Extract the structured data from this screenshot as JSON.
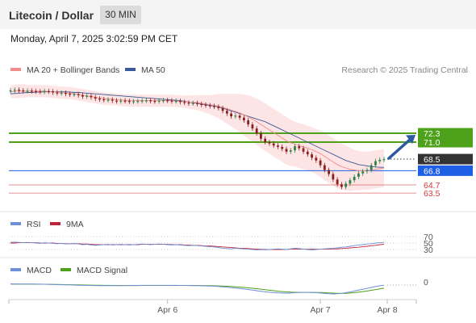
{
  "header": {
    "title": "Litecoin / Dollar",
    "interval": "30 MIN"
  },
  "timestamp": "Monday, April 7, 2025 3:02:59 PM CET",
  "legend": {
    "ma20": "MA 20 + Bollinger Bands",
    "ma50": "MA 50",
    "rsi": "RSI",
    "rsi9": "9MA",
    "macd": "MACD",
    "macd_signal": "MACD Signal"
  },
  "credit": "Research © 2025 Trading Central",
  "colors": {
    "ma20": "#f08c8c",
    "ma50": "#3b5998",
    "bands_fill": "#fde0e0",
    "green_level": "#4ea11a",
    "blue_level": "#1f5fe6",
    "red_level": "#e06060",
    "up_candle": "#2d7f4a",
    "down_candle": "#8b1f1f",
    "arrow": "#2d5aa0",
    "macd": "#6f8fd8",
    "macd_signal": "#4ea11a",
    "rsi": "#6f8fd8",
    "rsi9": "#c0243a"
  },
  "chart_data": {
    "type": "candlestick",
    "price_range": [
      61.5,
      80.5
    ],
    "levels": [
      {
        "value": 72.3,
        "label": "72.3",
        "kind": "resistance"
      },
      {
        "value": 71.0,
        "label": "71.0",
        "kind": "resistance"
      },
      {
        "value": 68.5,
        "label": "68.5",
        "kind": "last_price"
      },
      {
        "value": 66.8,
        "label": "66.8",
        "kind": "pivot"
      },
      {
        "value": 64.7,
        "label": "64.7",
        "kind": "support"
      },
      {
        "value": 63.5,
        "label": "63.5",
        "kind": "support"
      }
    ],
    "x_ticks": [
      "Apr 6",
      "Apr 7",
      "Apr 8"
    ],
    "close": [
      78.6,
      78.7,
      78.6,
      78.5,
      78.55,
      78.5,
      78.45,
      78.4,
      78.5,
      78.45,
      78.3,
      78.2,
      78.25,
      78.1,
      78.0,
      78.05,
      77.9,
      77.7,
      77.8,
      77.6,
      77.4,
      77.3,
      77.2,
      77.25,
      77.1,
      77.0,
      77.1,
      77.05,
      76.95,
      77.0,
      77.05,
      77.1,
      77.15,
      77.05,
      77.0,
      77.1,
      77.15,
      77.1,
      77.0,
      77.05,
      76.9,
      76.8,
      76.7,
      76.75,
      76.6,
      76.5,
      76.4,
      76.3,
      76.2,
      76.0,
      75.6,
      75.2,
      74.8,
      74.9,
      74.6,
      74.2,
      73.6,
      73.0,
      72.3,
      71.5,
      71.0,
      70.8,
      70.5,
      70.3,
      70.0,
      69.6,
      69.8,
      70.4,
      70.1,
      69.6,
      69.2,
      68.7,
      68.3,
      67.6,
      66.9,
      66.3,
      65.5,
      64.8,
      64.4,
      64.9,
      65.4,
      65.9,
      66.4,
      66.7,
      66.9,
      67.6,
      68.2,
      68.4,
      68.5
    ],
    "ma20": [
      78.4,
      78.45,
      78.5,
      78.5,
      78.5,
      78.5,
      78.5,
      78.5,
      78.5,
      78.45,
      78.4,
      78.35,
      78.3,
      78.25,
      78.2,
      78.1,
      78.0,
      77.9,
      77.8,
      77.7,
      77.6,
      77.5,
      77.4,
      77.35,
      77.3,
      77.25,
      77.2,
      77.15,
      77.1,
      77.1,
      77.1,
      77.1,
      77.1,
      77.1,
      77.1,
      77.1,
      77.1,
      77.1,
      77.1,
      77.05,
      77.0,
      76.95,
      76.9,
      76.85,
      76.8,
      76.7,
      76.6,
      76.5,
      76.4,
      76.3,
      76.1,
      75.9,
      75.7,
      75.5,
      75.3,
      75.0,
      74.7,
      74.4,
      74.0,
      73.6,
      73.2,
      72.8,
      72.4,
      72.0,
      71.6,
      71.2,
      70.9,
      70.7,
      70.5,
      70.3,
      70.1,
      69.9,
      69.6,
      69.3,
      68.9,
      68.5,
      68.1,
      67.7,
      67.4,
      67.2,
      67.0,
      66.9,
      66.8,
      66.8,
      66.8,
      66.9,
      67.0,
      67.1,
      67.2
    ],
    "ma50": [
      78.1,
      78.15,
      78.2,
      78.25,
      78.3,
      78.3,
      78.35,
      78.35,
      78.4,
      78.4,
      78.4,
      78.4,
      78.4,
      78.4,
      78.35,
      78.3,
      78.3,
      78.25,
      78.2,
      78.15,
      78.1,
      78.05,
      78.0,
      77.95,
      77.9,
      77.85,
      77.8,
      77.75,
      77.7,
      77.65,
      77.6,
      77.55,
      77.5,
      77.45,
      77.4,
      77.35,
      77.3,
      77.25,
      77.2,
      77.15,
      77.1,
      77.0,
      76.9,
      76.8,
      76.7,
      76.6,
      76.5,
      76.4,
      76.3,
      76.15,
      76.0,
      75.8,
      75.6,
      75.4,
      75.2,
      75.0,
      74.8,
      74.6,
      74.4,
      74.2,
      74.0,
      73.7,
      73.4,
      73.1,
      72.8,
      72.5,
      72.2,
      71.9,
      71.6,
      71.3,
      71.0,
      70.7,
      70.4,
      70.1,
      69.8,
      69.5,
      69.2,
      68.9,
      68.6,
      68.3,
      68.1,
      67.9,
      67.7,
      67.6,
      67.5,
      67.4,
      67.35,
      67.3,
      67.3
    ],
    "band_width": [
      0.9,
      1.0,
      1.0,
      1.0,
      0.9,
      0.9,
      0.9,
      0.9,
      0.9,
      0.9,
      0.9,
      0.9,
      0.9,
      0.9,
      0.9,
      0.9,
      0.9,
      0.9,
      0.9,
      0.9,
      0.9,
      0.9,
      0.9,
      0.9,
      0.9,
      0.9,
      0.9,
      0.9,
      0.9,
      0.9,
      0.9,
      0.9,
      0.9,
      0.9,
      0.9,
      0.9,
      0.9,
      0.9,
      0.9,
      0.9,
      0.9,
      0.9,
      1.0,
      1.0,
      1.1,
      1.2,
      1.3,
      1.4,
      1.6,
      1.8,
      2.0,
      2.2,
      2.4,
      2.6,
      2.8,
      3.0,
      3.2,
      3.3,
      3.4,
      3.5,
      3.5,
      3.5,
      3.5,
      3.5,
      3.5,
      3.5,
      3.4,
      3.3,
      3.3,
      3.3,
      3.3,
      3.3,
      3.3,
      3.4,
      3.5,
      3.5,
      3.5,
      3.5,
      3.4,
      3.3,
      3.2,
      3.0,
      2.9,
      2.8,
      2.8,
      2.8,
      2.8,
      2.8,
      2.8
    ],
    "rsi_levels": [
      70,
      50,
      30
    ],
    "rsi": [
      52,
      53,
      52,
      51,
      52,
      51,
      50,
      49,
      51,
      50,
      49,
      48,
      49,
      47,
      48,
      49,
      47,
      45,
      46,
      44,
      43,
      44,
      45,
      46,
      44,
      45,
      46,
      45,
      44,
      45,
      46,
      47,
      46,
      45,
      46,
      47,
      46,
      45,
      44,
      45,
      44,
      43,
      42,
      43,
      42,
      41,
      40,
      39,
      38,
      36,
      34,
      33,
      32,
      34,
      33,
      32,
      31,
      30,
      29,
      30,
      29,
      30,
      31,
      32,
      31,
      30,
      32,
      34,
      33,
      31,
      30,
      29,
      30,
      31,
      32,
      33,
      34,
      35,
      37,
      38,
      40,
      42,
      44,
      45,
      47,
      48,
      50,
      51,
      52
    ],
    "rsi_9ma": [
      50,
      50,
      51,
      51,
      51,
      51,
      51,
      50,
      50,
      50,
      50,
      49,
      49,
      48,
      48,
      48,
      48,
      47,
      47,
      46,
      45,
      45,
      45,
      45,
      45,
      45,
      45,
      45,
      45,
      45,
      45,
      46,
      46,
      46,
      46,
      46,
      46,
      46,
      45,
      45,
      45,
      44,
      44,
      43,
      43,
      42,
      41,
      41,
      40,
      39,
      38,
      37,
      36,
      35,
      34,
      34,
      33,
      32,
      31,
      31,
      30,
      30,
      30,
      30,
      30,
      30,
      31,
      31,
      31,
      31,
      31,
      31,
      31,
      31,
      31,
      31,
      32,
      32,
      33,
      34,
      35,
      36,
      37,
      39,
      40,
      42,
      43,
      45,
      46
    ],
    "macd_zero_label": "0",
    "macd": [
      0.15,
      0.15,
      0.14,
      0.14,
      0.13,
      0.13,
      0.12,
      0.12,
      0.11,
      0.1,
      0.08,
      0.06,
      0.05,
      0.03,
      0.02,
      0.0,
      -0.02,
      -0.04,
      -0.05,
      -0.06,
      -0.07,
      -0.08,
      -0.08,
      -0.08,
      -0.08,
      -0.08,
      -0.08,
      -0.07,
      -0.07,
      -0.06,
      -0.06,
      -0.05,
      -0.05,
      -0.05,
      -0.05,
      -0.05,
      -0.05,
      -0.05,
      -0.05,
      -0.05,
      -0.06,
      -0.06,
      -0.07,
      -0.08,
      -0.09,
      -0.1,
      -0.12,
      -0.14,
      -0.16,
      -0.2,
      -0.25,
      -0.3,
      -0.36,
      -0.42,
      -0.48,
      -0.55,
      -0.62,
      -0.7,
      -0.78,
      -0.86,
      -0.93,
      -0.99,
      -1.04,
      -1.08,
      -1.1,
      -1.12,
      -1.1,
      -1.05,
      -1.02,
      -1.0,
      -1.0,
      -1.02,
      -1.05,
      -1.1,
      -1.15,
      -1.2,
      -1.22,
      -1.2,
      -1.15,
      -1.05,
      -0.95,
      -0.82,
      -0.7,
      -0.58,
      -0.45,
      -0.32,
      -0.2,
      -0.1,
      -0.02
    ],
    "macd_signal": [
      0.12,
      0.12,
      0.12,
      0.12,
      0.12,
      0.12,
      0.12,
      0.11,
      0.11,
      0.1,
      0.09,
      0.08,
      0.07,
      0.06,
      0.05,
      0.04,
      0.03,
      0.01,
      0.0,
      -0.01,
      -0.02,
      -0.03,
      -0.04,
      -0.05,
      -0.06,
      -0.06,
      -0.07,
      -0.07,
      -0.07,
      -0.07,
      -0.07,
      -0.06,
      -0.06,
      -0.06,
      -0.06,
      -0.06,
      -0.06,
      -0.06,
      -0.06,
      -0.06,
      -0.06,
      -0.06,
      -0.06,
      -0.06,
      -0.07,
      -0.07,
      -0.08,
      -0.09,
      -0.1,
      -0.12,
      -0.14,
      -0.17,
      -0.2,
      -0.24,
      -0.28,
      -0.33,
      -0.38,
      -0.44,
      -0.5,
      -0.57,
      -0.64,
      -0.71,
      -0.78,
      -0.84,
      -0.9,
      -0.94,
      -0.98,
      -1.0,
      -1.01,
      -1.01,
      -1.01,
      -1.01,
      -1.02,
      -1.03,
      -1.05,
      -1.08,
      -1.11,
      -1.13,
      -1.14,
      -1.13,
      -1.1,
      -1.05,
      -0.98,
      -0.9,
      -0.82,
      -0.72,
      -0.62,
      -0.52,
      -0.42
    ]
  }
}
